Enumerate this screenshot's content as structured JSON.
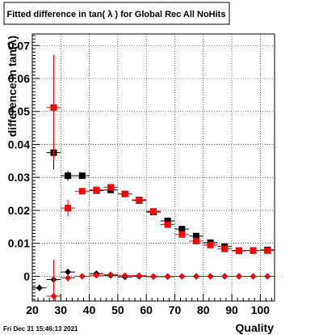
{
  "title": "Fitted difference in tan( λ ) for Global Rec All NoHits",
  "footer": "Fri Dec 31 15:46:13 2021",
  "chart_data": {
    "type": "scatter",
    "title": "Fitted difference in tan( λ ) for Global Rec All NoHits",
    "xlabel": "Quality",
    "ylabel": "difference in tan(λ)",
    "xlim": [
      20,
      105
    ],
    "ylim": [
      -0.0075,
      0.0735
    ],
    "x_ticks": [
      "20",
      "30",
      "40",
      "50",
      "60",
      "70",
      "80",
      "90",
      "100"
    ],
    "y_ticks": [
      "0",
      "0.01",
      "0.02",
      "0.03",
      "0.04",
      "0.05",
      "0.06",
      "0.07"
    ],
    "grid": true,
    "series": [
      {
        "color": "#000000",
        "marker": "square",
        "points": [
          {
            "x": 27.5,
            "y": 0.0375,
            "err": 0.005
          },
          {
            "x": 32.5,
            "y": 0.0305,
            "err": 0.0015
          },
          {
            "x": 37.5,
            "y": 0.0305,
            "err": 0.0008
          },
          {
            "x": 42.5,
            "y": 0.026,
            "err": 0.0008
          },
          {
            "x": 47.5,
            "y": 0.0262,
            "err": 0.0008
          },
          {
            "x": 52.5,
            "y": 0.025,
            "err": 0.0006
          },
          {
            "x": 57.5,
            "y": 0.023,
            "err": 0.0005
          },
          {
            "x": 62.5,
            "y": 0.0195,
            "err": 0.0005
          },
          {
            "x": 67.5,
            "y": 0.0168,
            "err": 0.0005
          },
          {
            "x": 72.5,
            "y": 0.0143,
            "err": 0.0005
          },
          {
            "x": 77.5,
            "y": 0.0122,
            "err": 0.0005
          },
          {
            "x": 82.5,
            "y": 0.0102,
            "err": 0.0004
          },
          {
            "x": 87.5,
            "y": 0.009,
            "err": 0.0004
          },
          {
            "x": 92.5,
            "y": 0.0078,
            "err": 0.0004
          },
          {
            "x": 97.5,
            "y": 0.0078,
            "err": 0.0004
          },
          {
            "x": 102.5,
            "y": 0.008,
            "err": 0.0004
          }
        ]
      },
      {
        "color": "#ff0000",
        "marker": "square",
        "points": [
          {
            "x": 27.5,
            "y": 0.0512,
            "err": 0.016
          },
          {
            "x": 32.5,
            "y": 0.0207,
            "err": 0.0025
          },
          {
            "x": 37.5,
            "y": 0.0258,
            "err": 0.001
          },
          {
            "x": 42.5,
            "y": 0.0262,
            "err": 0.0008
          },
          {
            "x": 47.5,
            "y": 0.027,
            "err": 0.0008
          },
          {
            "x": 52.5,
            "y": 0.025,
            "err": 0.0006
          },
          {
            "x": 57.5,
            "y": 0.0232,
            "err": 0.0005
          },
          {
            "x": 62.5,
            "y": 0.0197,
            "err": 0.0005
          },
          {
            "x": 67.5,
            "y": 0.0157,
            "err": 0.0005
          },
          {
            "x": 72.5,
            "y": 0.0127,
            "err": 0.0005
          },
          {
            "x": 77.5,
            "y": 0.0107,
            "err": 0.0005
          },
          {
            "x": 82.5,
            "y": 0.0095,
            "err": 0.0004
          },
          {
            "x": 87.5,
            "y": 0.0083,
            "err": 0.0004
          },
          {
            "x": 92.5,
            "y": 0.0077,
            "err": 0.0004
          },
          {
            "x": 97.5,
            "y": 0.0078,
            "err": 0.0004
          },
          {
            "x": 102.5,
            "y": 0.0078,
            "err": 0.0004
          }
        ]
      },
      {
        "color": "#000000",
        "marker": "diamond",
        "points": [
          {
            "x": 22.5,
            "y": -0.0035,
            "err": 0.001
          },
          {
            "x": 27.5,
            "y": -0.001,
            "err": 0.002
          },
          {
            "x": 32.5,
            "y": 0.0013,
            "err": 0.001
          },
          {
            "x": 37.5,
            "y": 0.0,
            "err": 0.0004
          },
          {
            "x": 42.5,
            "y": 0.0008,
            "err": 0.0003
          },
          {
            "x": 47.5,
            "y": 0.0003,
            "err": 0.0003
          },
          {
            "x": 52.5,
            "y": -0.0002,
            "err": 0.0003
          },
          {
            "x": 57.5,
            "y": 0.0,
            "err": 0.0002
          },
          {
            "x": 62.5,
            "y": -0.0001,
            "err": 0.0002
          },
          {
            "x": 67.5,
            "y": -0.0001,
            "err": 0.0002
          },
          {
            "x": 72.5,
            "y": 0.0,
            "err": 0.0002
          },
          {
            "x": 77.5,
            "y": 0.0,
            "err": 0.0002
          },
          {
            "x": 82.5,
            "y": 0.0,
            "err": 0.0002
          },
          {
            "x": 87.5,
            "y": 0.0,
            "err": 0.0002
          },
          {
            "x": 92.5,
            "y": 0.0,
            "err": 0.0002
          },
          {
            "x": 97.5,
            "y": 0.0,
            "err": 0.0002
          },
          {
            "x": 102.5,
            "y": 0.0,
            "err": 0.0002
          }
        ]
      },
      {
        "color": "#ff0000",
        "marker": "diamond",
        "points": [
          {
            "x": 27.5,
            "y": -0.006,
            "err": 0.011
          },
          {
            "x": 32.5,
            "y": -0.0005,
            "err": 0.0012
          },
          {
            "x": 37.5,
            "y": 0.0,
            "err": 0.0005
          },
          {
            "x": 42.5,
            "y": 0.0003,
            "err": 0.0004
          },
          {
            "x": 47.5,
            "y": 0.0005,
            "err": 0.0003
          },
          {
            "x": 52.5,
            "y": 0.0002,
            "err": 0.0003
          },
          {
            "x": 57.5,
            "y": 0.0002,
            "err": 0.0002
          },
          {
            "x": 62.5,
            "y": 0.0,
            "err": 0.0002
          },
          {
            "x": 67.5,
            "y": 0.0,
            "err": 0.0002
          },
          {
            "x": 72.5,
            "y": 0.0,
            "err": 0.0002
          },
          {
            "x": 77.5,
            "y": 0.0,
            "err": 0.0002
          },
          {
            "x": 82.5,
            "y": 0.0,
            "err": 0.0002
          },
          {
            "x": 87.5,
            "y": 0.0,
            "err": 0.0002
          },
          {
            "x": 92.5,
            "y": 0.0,
            "err": 0.0002
          },
          {
            "x": 97.5,
            "y": 0.0,
            "err": 0.0002
          },
          {
            "x": 102.5,
            "y": 0.0,
            "err": 0.0002
          }
        ]
      }
    ]
  }
}
